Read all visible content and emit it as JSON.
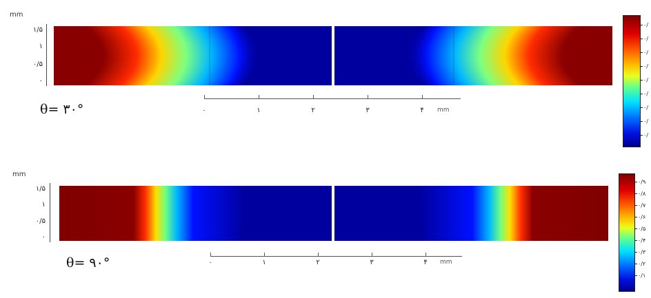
{
  "panels": [
    {
      "angle_label": "θ= ٣٠°",
      "y_unit": "mm",
      "y_ticks": [
        "١/۵",
        "١",
        "٠/۵",
        "٠"
      ],
      "x_ticks": [
        "٠",
        "١",
        "٢",
        "٣",
        "۴"
      ],
      "x_unit": "mm",
      "colorbar_ticks": [
        "٠/",
        "٠/",
        "٠/",
        "٠/",
        "٠/",
        "٠/",
        "٠/",
        "٠/",
        "٠/"
      ]
    },
    {
      "angle_label": "θ= ٩٠°",
      "y_unit": "mm",
      "y_ticks": [
        "١/۵",
        "١",
        "٠/۵",
        "٠"
      ],
      "x_ticks": [
        "٠",
        "١",
        "٢",
        "٣",
        "۴"
      ],
      "x_unit": "mm",
      "colorbar_ticks": [
        "٠/٩",
        "٠/٨",
        "٠/٧",
        "٠/۶",
        "٠/۵",
        "٠/۴",
        "٠/٣",
        "٠/٢",
        "٠/١"
      ]
    }
  ],
  "colors": {
    "high": "#7f0000",
    "low": "#00009e"
  }
}
